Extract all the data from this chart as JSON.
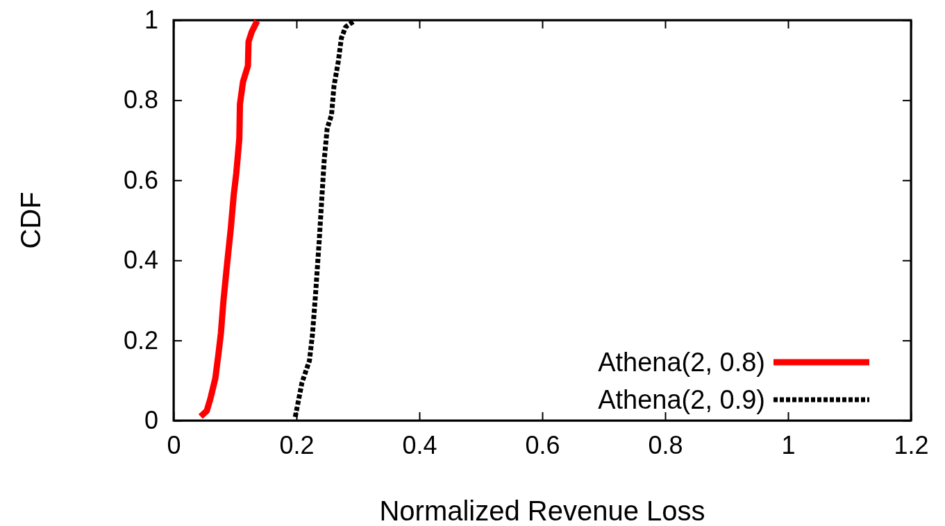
{
  "chart_data": {
    "type": "line",
    "xlabel": "Normalized Revenue Loss",
    "ylabel": "CDF",
    "xlim": [
      0,
      1.2
    ],
    "ylim": [
      0,
      1
    ],
    "xticks": [
      0,
      0.2,
      0.4,
      0.6,
      0.8,
      1,
      1.2
    ],
    "yticks": [
      0,
      0.2,
      0.4,
      0.6,
      0.8,
      1
    ],
    "grid": false,
    "legend": "bottom right",
    "marker": "none",
    "series": [
      {
        "name": "Athena(2, 0.8)",
        "color": "#ff0000",
        "line_style": "solid",
        "x": [
          0.044,
          0.054,
          0.06,
          0.068,
          0.073,
          0.077,
          0.081,
          0.087,
          0.093,
          0.098,
          0.102,
          0.107,
          0.108,
          0.113,
          0.121,
          0.122,
          0.127,
          0.136
        ],
        "values": [
          0.01,
          0.024,
          0.055,
          0.106,
          0.166,
          0.218,
          0.296,
          0.39,
          0.478,
          0.565,
          0.617,
          0.704,
          0.79,
          0.846,
          0.886,
          0.946,
          0.97,
          0.998
        ]
      },
      {
        "name": "Athena(2, 0.9)",
        "color": "#000000",
        "line_style": "dotted",
        "x": [
          0.198,
          0.209,
          0.221,
          0.226,
          0.231,
          0.237,
          0.241,
          0.245,
          0.25,
          0.257,
          0.261,
          0.268,
          0.273,
          0.28,
          0.294
        ],
        "values": [
          0.009,
          0.095,
          0.149,
          0.215,
          0.315,
          0.449,
          0.549,
          0.648,
          0.73,
          0.763,
          0.835,
          0.896,
          0.955,
          0.983,
          0.998
        ]
      }
    ]
  }
}
